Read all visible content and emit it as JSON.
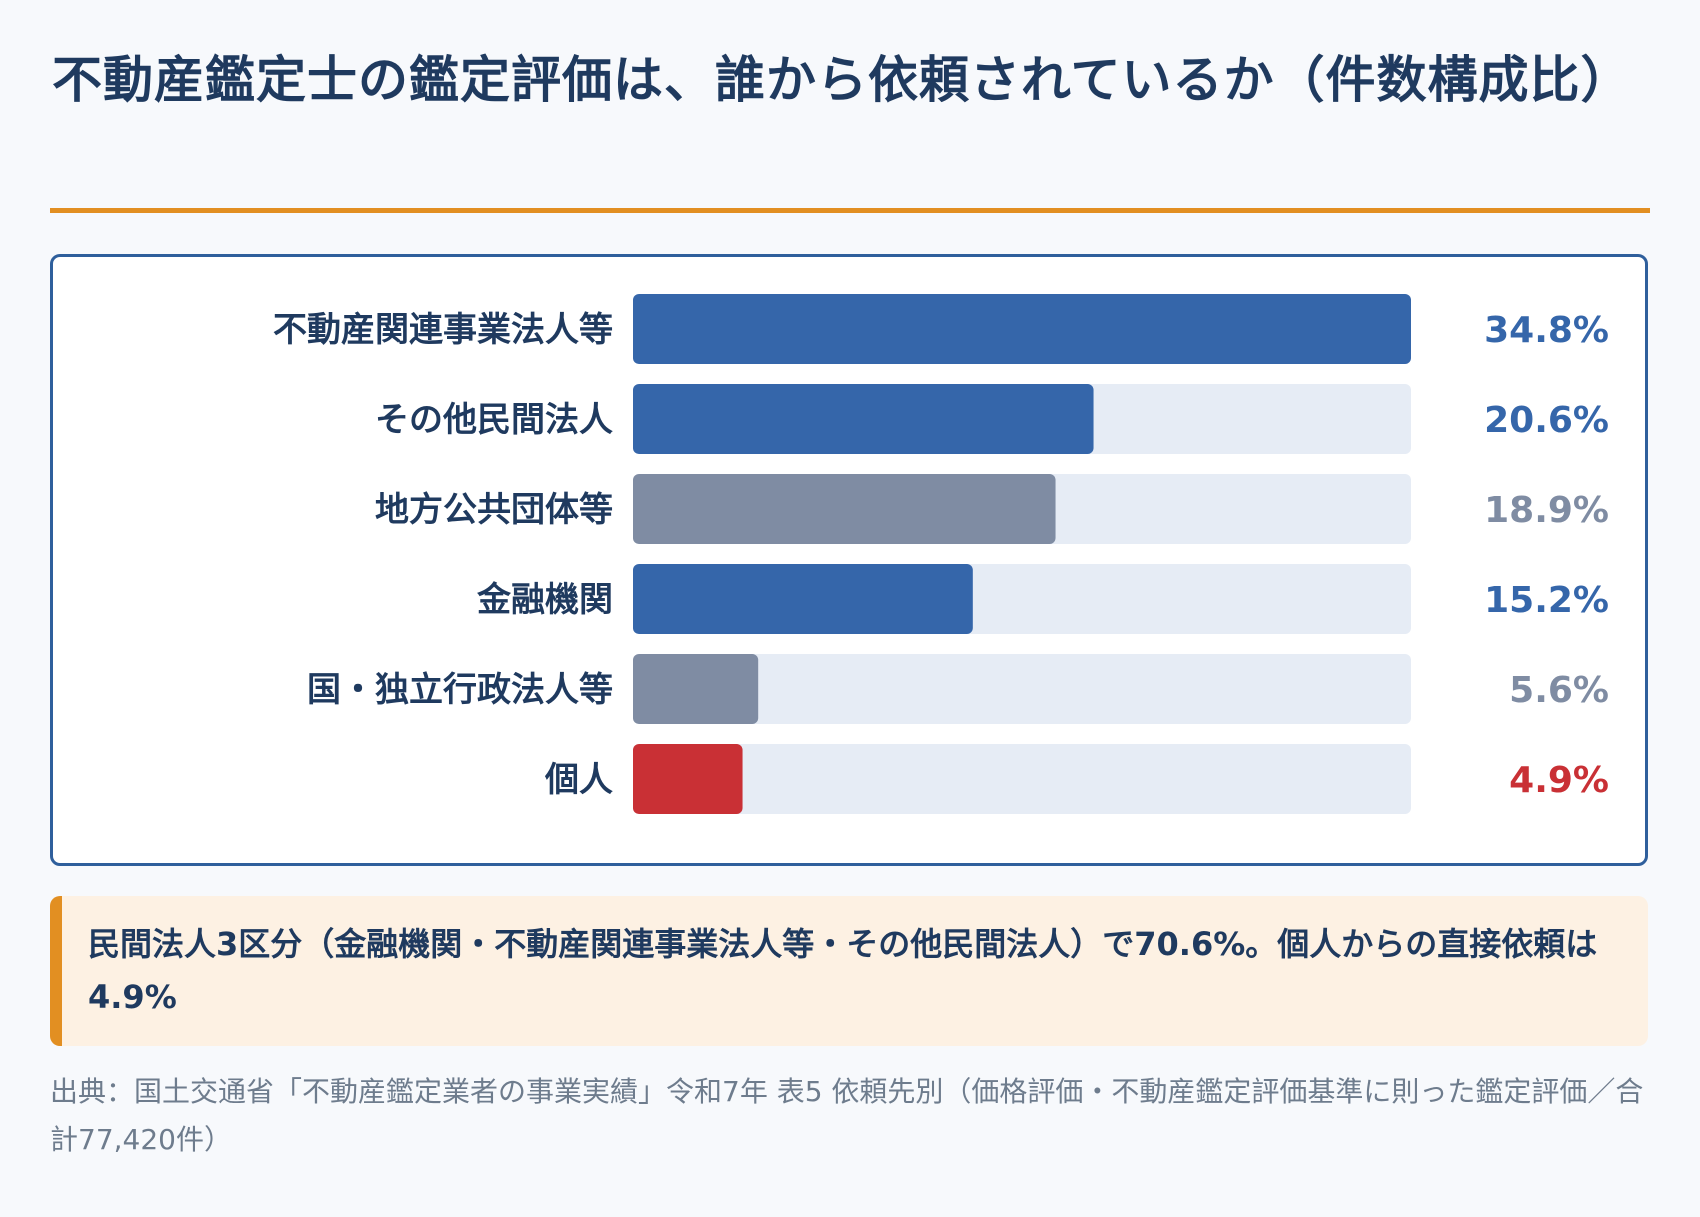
{
  "title": "不動産鑑定士の鑑定評価は、誰から依頼されているか（件数構成比）",
  "colors": {
    "blue": "#3566aa",
    "gray": "#7f8ca3",
    "red": "#c93035",
    "track": "#e6ecf5",
    "accent": "#e28f22",
    "text": "#1f3a5f"
  },
  "chart_data": {
    "type": "bar",
    "orientation": "horizontal",
    "xlim": [
      0,
      34.8
    ],
    "categories": [
      "不動産関連事業法人等",
      "その他民間法人",
      "地方公共団体等",
      "金融機関",
      "国・独立行政法人等",
      "個人"
    ],
    "values": [
      34.8,
      20.6,
      18.9,
      15.2,
      5.6,
      4.9
    ],
    "value_labels": [
      "34.8%",
      "20.6%",
      "18.9%",
      "15.2%",
      "5.6%",
      "4.9%"
    ],
    "bar_colors": [
      "#3566aa",
      "#3566aa",
      "#7f8ca3",
      "#3566aa",
      "#7f8ca3",
      "#c93035"
    ]
  },
  "note": "民間法人3区分（金融機関・不動産関連事業法人等・その他民間法人）で70.6%。個人からの直接依頼は4.9%",
  "source": "出典：国土交通省「不動産鑑定業者の事業実績」令和7年 表5 依頼先別（価格評価・不動産鑑定評価基準に則った鑑定評価／合計77,420件）"
}
